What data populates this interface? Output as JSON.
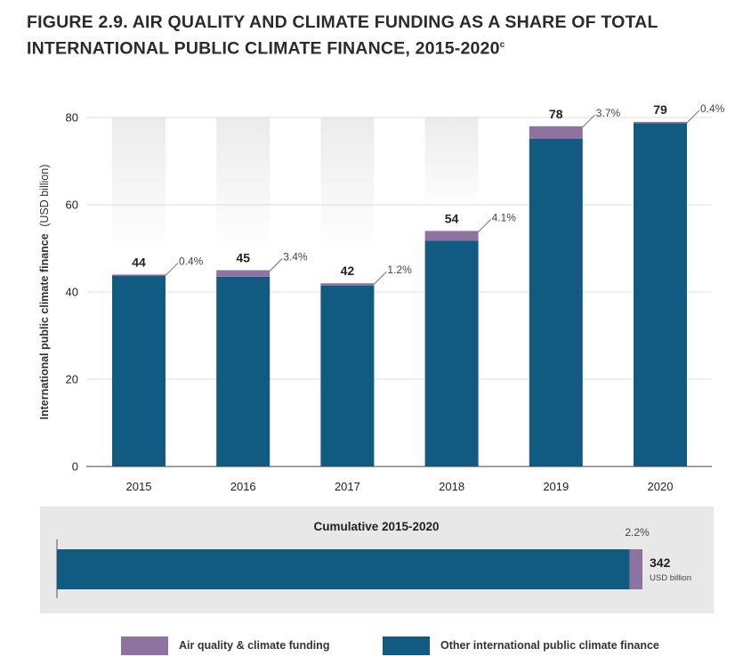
{
  "title": {
    "line1": "FIGURE 2.9.  AIR QUALITY AND CLIMATE FUNDING AS A SHARE OF TOTAL",
    "line2": "INTERNATIONAL PUBLIC CLIMATE FINANCE, 2015-2020",
    "footnote": "c"
  },
  "colors": {
    "air_quality": "#8e73a1",
    "other": "#115a82",
    "shade": "#ebebeb",
    "panel": "#e8e8e8",
    "grid": "#dddddd"
  },
  "legend": {
    "air_quality": "Air quality & climate funding",
    "other": "Other international public climate finance"
  },
  "chart_data": [
    {
      "type": "bar",
      "stacked": true,
      "ylabel_bold": "International public climate finance",
      "ylabel_unit": "(USD billion)",
      "ylim": [
        0,
        80
      ],
      "yticks": [
        "0",
        "20",
        "40",
        "60",
        "80"
      ],
      "grid": true,
      "categories": [
        "2015",
        "2016",
        "2017",
        "2018",
        "2019",
        "2020"
      ],
      "totals": [
        "44",
        "45",
        "42",
        "54",
        "78",
        "79"
      ],
      "share_labels": [
        "0.4%",
        "3.4%",
        "1.2%",
        "4.1%",
        "3.7%",
        "0.4%"
      ],
      "series": [
        {
          "key": "other",
          "values": [
            43.8,
            43.5,
            41.5,
            51.8,
            75.1,
            78.7
          ]
        },
        {
          "key": "air_quality",
          "values": [
            0.2,
            1.5,
            0.5,
            2.2,
            2.9,
            0.3
          ]
        }
      ]
    },
    {
      "type": "bar",
      "orientation": "horizontal",
      "stacked": true,
      "title": "Cumulative 2015-2020",
      "total_label": "342",
      "unit_label": "USD billion",
      "share_label": "2.2%",
      "series": [
        {
          "key": "other",
          "value": 334.5
        },
        {
          "key": "air_quality",
          "value": 7.5
        }
      ]
    }
  ]
}
